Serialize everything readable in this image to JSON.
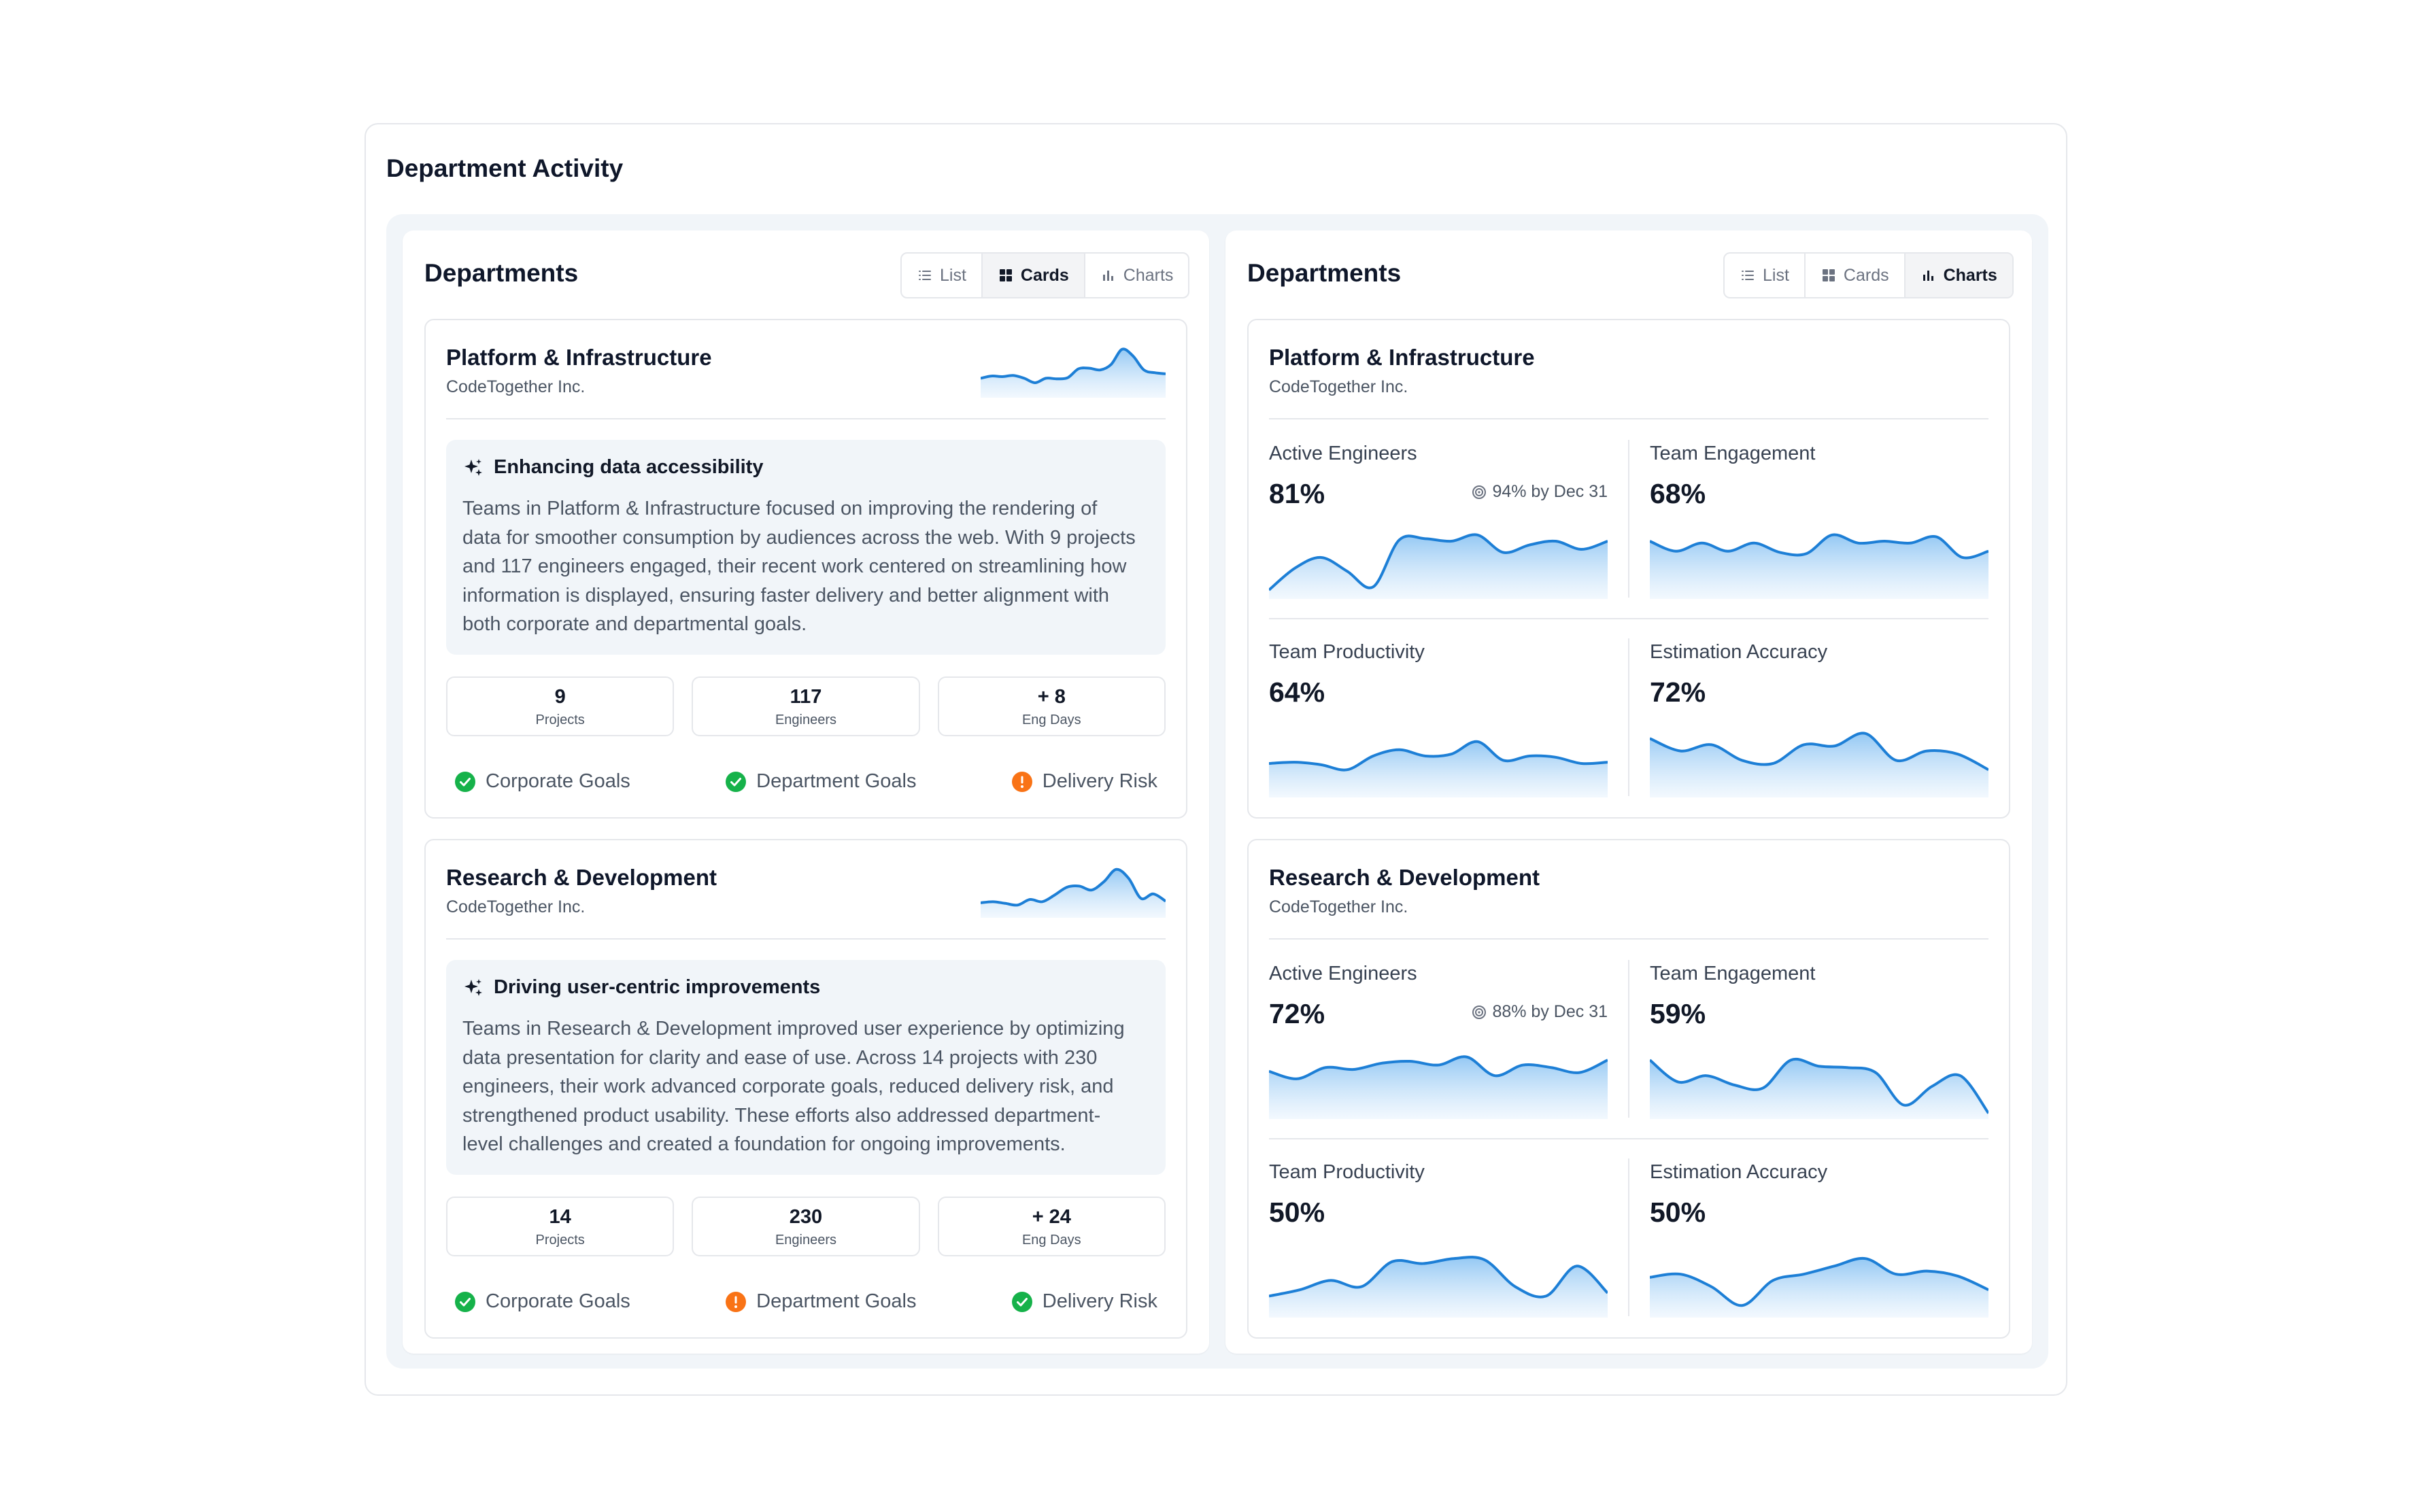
{
  "page": {
    "title": "Department Activity"
  },
  "views": {
    "list": "List",
    "cards": "Cards",
    "charts": "Charts"
  },
  "colors": {
    "accent": "#1d7fd6",
    "success": "#16b24a",
    "warning": "#f97316"
  },
  "left_panel": {
    "title": "Departments",
    "active_view": "Cards",
    "departments": [
      {
        "name": "Platform & Infrastructure",
        "company": "CodeTogether Inc.",
        "trend": [
          0.3,
          0.34,
          0.33,
          0.35,
          0.3,
          0.22,
          0.3,
          0.29,
          0.31,
          0.47,
          0.48,
          0.45,
          0.55,
          0.82,
          0.7,
          0.45,
          0.4,
          0.38
        ],
        "summary_title": "Enhancing data accessibility",
        "summary_icon": "sparkle-icon",
        "summary": "Teams in Platform & Infrastructure focused on improving the rendering of data for smoother consumption by audiences across the web. With 9 projects and 117 engineers engaged, their recent work centered on streamlining how information is displayed, ensuring faster delivery and better alignment with both corporate and departmental goals.",
        "stats": [
          {
            "value": "9",
            "label": "Projects"
          },
          {
            "value": "117",
            "label": "Engineers"
          },
          {
            "value": "+ 8",
            "label": "Eng Days"
          }
        ],
        "goals": [
          {
            "label": "Corporate Goals",
            "status": "ok",
            "icon": "check-circle-icon"
          },
          {
            "label": "Department Goals",
            "status": "ok",
            "icon": "check-circle-icon"
          },
          {
            "label": "Delivery Risk",
            "status": "warning",
            "icon": "alert-circle-icon"
          }
        ]
      },
      {
        "name": "Research & Development",
        "company": "CodeTogether Inc.",
        "trend": [
          0.22,
          0.24,
          0.21,
          0.18,
          0.28,
          0.24,
          0.36,
          0.5,
          0.52,
          0.45,
          0.6,
          0.82,
          0.66,
          0.3,
          0.38,
          0.25
        ],
        "summary_title": "Driving user-centric improvements",
        "summary_icon": "sparkle-icon",
        "summary": "Teams in Research & Development improved user experience by optimizing data presentation for clarity and ease of use. Across 14 projects with 230 engineers, their work advanced corporate goals, reduced delivery risk, and strengthened product usability. These efforts also addressed department-level challenges and created a foundation for ongoing improvements.",
        "stats": [
          {
            "value": "14",
            "label": "Projects"
          },
          {
            "value": "230",
            "label": "Engineers"
          },
          {
            "value": "+ 24",
            "label": "Eng Days"
          }
        ],
        "goals": [
          {
            "label": "Corporate Goals",
            "status": "ok",
            "icon": "check-circle-icon"
          },
          {
            "label": "Department Goals",
            "status": "warning",
            "icon": "alert-circle-icon"
          },
          {
            "label": "Delivery Risk",
            "status": "ok",
            "icon": "check-circle-icon"
          }
        ]
      }
    ]
  },
  "right_panel": {
    "title": "Departments",
    "active_view": "Charts",
    "departments": [
      {
        "name": "Platform & Infrastructure",
        "company": "CodeTogether Inc.",
        "metrics": [
          {
            "label": "Active Engineers",
            "value": "81%",
            "target": "94% by Dec 31",
            "trend": [
              0.1,
              0.45,
              0.62,
              0.4,
              0.15,
              0.9,
              0.92,
              0.88,
              0.98,
              0.7,
              0.82,
              0.88,
              0.75,
              0.88
            ]
          },
          {
            "label": "Team Engagement",
            "value": "68%",
            "trend": [
              0.88,
              0.72,
              0.85,
              0.72,
              0.85,
              0.7,
              0.68,
              0.98,
              0.85,
              0.88,
              0.85,
              0.95,
              0.62,
              0.72
            ]
          },
          {
            "label": "Team Productivity",
            "value": "64%",
            "trend": [
              0.5,
              0.52,
              0.48,
              0.4,
              0.62,
              0.72,
              0.62,
              0.65,
              0.85,
              0.55,
              0.62,
              0.6,
              0.5,
              0.52
            ]
          },
          {
            "label": "Estimation Accuracy",
            "value": "72%",
            "trend": [
              0.9,
              0.7,
              0.8,
              0.55,
              0.5,
              0.8,
              0.78,
              0.98,
              0.55,
              0.7,
              0.65,
              0.4
            ]
          }
        ]
      },
      {
        "name": "Research & Development",
        "company": "CodeTogether Inc.",
        "metrics": [
          {
            "label": "Active Engineers",
            "value": "72%",
            "target": "88% by Dec 31",
            "trend": [
              0.72,
              0.6,
              0.78,
              0.75,
              0.85,
              0.88,
              0.82,
              0.95,
              0.65,
              0.82,
              0.78,
              0.7,
              0.9
            ]
          },
          {
            "label": "Team Engagement",
            "value": "59%",
            "trend": [
              0.9,
              0.55,
              0.65,
              0.5,
              0.45,
              0.9,
              0.8,
              0.78,
              0.7,
              0.18,
              0.48,
              0.65,
              0.05
            ]
          },
          {
            "label": "Team Productivity",
            "value": "50%",
            "trend": [
              0.3,
              0.4,
              0.55,
              0.45,
              0.85,
              0.82,
              0.9,
              0.88,
              0.45,
              0.3,
              0.78,
              0.35
            ]
          },
          {
            "label": "Estimation Accuracy",
            "value": "50%",
            "trend": [
              0.6,
              0.65,
              0.45,
              0.15,
              0.55,
              0.65,
              0.78,
              0.9,
              0.65,
              0.7,
              0.62,
              0.4
            ]
          }
        ]
      }
    ]
  }
}
